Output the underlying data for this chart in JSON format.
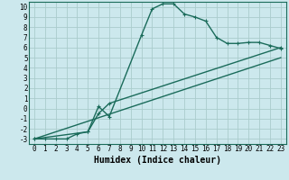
{
  "title": "",
  "xlabel": "Humidex (Indice chaleur)",
  "bg_color": "#cce8ed",
  "grid_color": "#aacccc",
  "line_color": "#1a6b5a",
  "xlim": [
    -0.5,
    23.5
  ],
  "ylim": [
    -3.5,
    10.5
  ],
  "xticks": [
    0,
    1,
    2,
    3,
    4,
    5,
    6,
    7,
    8,
    9,
    10,
    11,
    12,
    13,
    14,
    15,
    16,
    17,
    18,
    19,
    20,
    21,
    22,
    23
  ],
  "yticks": [
    -3,
    -2,
    -1,
    0,
    1,
    2,
    3,
    4,
    5,
    6,
    7,
    8,
    9,
    10
  ],
  "series1_x": [
    0,
    1,
    2,
    3,
    4,
    5,
    6,
    7,
    10,
    11,
    12,
    13,
    14,
    15,
    16,
    17,
    18,
    19,
    20,
    21,
    22,
    23
  ],
  "series1_y": [
    -3,
    -3,
    -3,
    -3,
    -2.5,
    -2.3,
    0.2,
    -0.8,
    7.2,
    9.8,
    10.3,
    10.3,
    9.3,
    9.0,
    8.6,
    7.0,
    6.4,
    6.4,
    6.5,
    6.5,
    6.2,
    5.9
  ],
  "series2_x": [
    0,
    5,
    6,
    7,
    23
  ],
  "series2_y": [
    -3,
    -2.3,
    -0.5,
    0.5,
    6.0
  ],
  "series3_x": [
    0,
    23
  ],
  "series3_y": [
    -3,
    5.0
  ],
  "linewidth": 1.0,
  "markersize": 3.5,
  "xlabel_fontsize": 7,
  "tick_fontsize": 5.5
}
